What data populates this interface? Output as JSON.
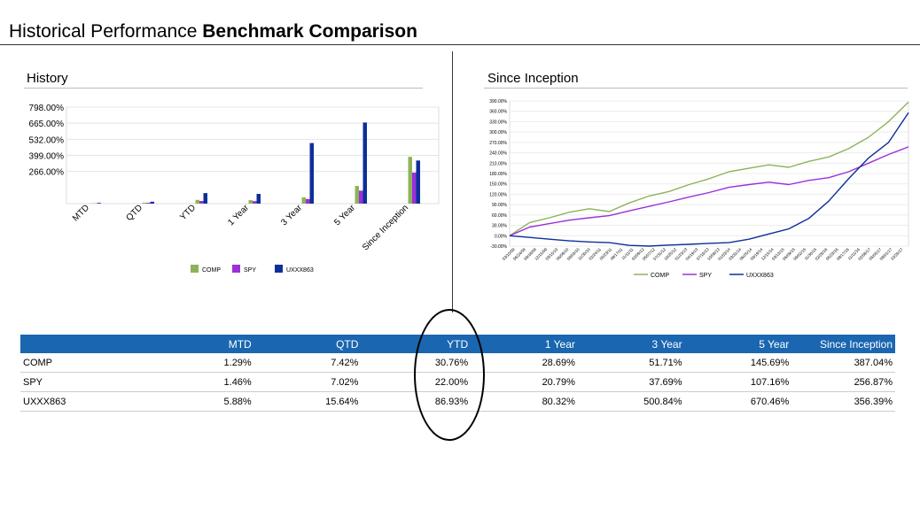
{
  "page": {
    "title_light": "Historical Performance ",
    "title_bold": "Benchmark Comparison"
  },
  "history": {
    "title": "History"
  },
  "inception": {
    "title": "Since Inception"
  },
  "colors": {
    "comp": "#8db35a",
    "spy": "#9b30d9",
    "uxxx": "#0d2f9a",
    "header_bg": "#1a66b0"
  },
  "chart_data": [
    {
      "type": "bar",
      "title": "History",
      "categories": [
        "MTD",
        "QTD",
        "YTD",
        "1 Year",
        "3 Year",
        "5 Year",
        "Since Inception"
      ],
      "series": [
        {
          "name": "COMP",
          "values": [
            1.29,
            7.42,
            30.76,
            28.69,
            51.71,
            145.69,
            387.04
          ]
        },
        {
          "name": "SPY",
          "values": [
            1.46,
            7.02,
            22.0,
            20.79,
            37.69,
            107.16,
            256.87
          ]
        },
        {
          "name": "UXXX863",
          "values": [
            5.88,
            15.64,
            86.93,
            80.32,
            500.84,
            670.46,
            356.39
          ]
        }
      ],
      "y_ticks": [
        "798.00%",
        "665.00%",
        "532.00%",
        "399.00%",
        "266.00%"
      ],
      "y_tick_values": [
        798,
        665,
        532,
        399,
        266
      ],
      "ylim": [
        0,
        798
      ],
      "legend": [
        "COMP",
        "SPY",
        "UXXX863"
      ],
      "legend_position": "bottom"
    },
    {
      "type": "line",
      "title": "Since Inception",
      "y_ticks": [
        "390.00%",
        "360.00%",
        "330.00%",
        "300.00%",
        "270.00%",
        "240.00%",
        "210.00%",
        "180.00%",
        "150.00%",
        "120.00%",
        "90.00%",
        "60.00%",
        "30.00%",
        "0.00%",
        "-30.00%"
      ],
      "ylim": [
        -30,
        390
      ],
      "x_ticks": [
        "03/10/09",
        "06/24/09",
        "09/18/09",
        "12/15/09",
        "03/15/10",
        "06/09/10",
        "09/03/10",
        "11/30/10",
        "02/24/11",
        "05/23/11",
        "08/17/11",
        "11/11/11",
        "02/09/12",
        "05/07/12",
        "07/31/12",
        "10/25/12",
        "01/23/13",
        "04/19/13",
        "07/16/13",
        "10/08/13",
        "01/03/14",
        "03/31/14",
        "06/25/14",
        "09/19/14",
        "12/15/14",
        "03/13/15",
        "06/09/15",
        "09/02/15",
        "11/30/15",
        "02/26/16",
        "05/23/16",
        "08/17/16",
        "11/11/16",
        "02/08/17",
        "05/05/17",
        "08/01/17",
        "10/26/17"
      ],
      "series": [
        {
          "name": "COMP",
          "x": [
            0,
            0.05,
            0.1,
            0.15,
            0.2,
            0.25,
            0.3,
            0.35,
            0.4,
            0.45,
            0.5,
            0.55,
            0.6,
            0.65,
            0.7,
            0.75,
            0.8,
            0.85,
            0.9,
            0.95,
            1.0
          ],
          "values": [
            0,
            38,
            52,
            68,
            78,
            70,
            95,
            115,
            128,
            148,
            165,
            185,
            195,
            205,
            198,
            215,
            228,
            252,
            285,
            330,
            387
          ]
        },
        {
          "name": "SPY",
          "x": [
            0,
            0.05,
            0.1,
            0.15,
            0.2,
            0.25,
            0.3,
            0.35,
            0.4,
            0.45,
            0.5,
            0.55,
            0.6,
            0.65,
            0.7,
            0.75,
            0.8,
            0.85,
            0.9,
            0.95,
            1.0
          ],
          "values": [
            0,
            25,
            35,
            45,
            52,
            58,
            72,
            85,
            98,
            112,
            125,
            140,
            148,
            155,
            148,
            160,
            168,
            185,
            210,
            235,
            257
          ]
        },
        {
          "name": "UXXX863",
          "x": [
            0,
            0.05,
            0.1,
            0.15,
            0.2,
            0.25,
            0.3,
            0.35,
            0.4,
            0.45,
            0.5,
            0.55,
            0.6,
            0.65,
            0.7,
            0.75,
            0.8,
            0.85,
            0.9,
            0.95,
            1.0
          ],
          "values": [
            0,
            -5,
            -10,
            -15,
            -18,
            -20,
            -28,
            -30,
            -27,
            -25,
            -22,
            -20,
            -10,
            5,
            20,
            50,
            100,
            165,
            225,
            270,
            356
          ]
        }
      ],
      "legend": [
        "COMP",
        "SPY",
        "UXXX863"
      ],
      "legend_position": "bottom"
    }
  ],
  "table": {
    "columns": [
      "",
      "MTD",
      "QTD",
      "YTD",
      "1 Year",
      "3 Year",
      "5 Year",
      "Since Inception"
    ],
    "rows": [
      {
        "name": "COMP",
        "cells": [
          "1.29%",
          "7.42%",
          "30.76%",
          "28.69%",
          "51.71%",
          "145.69%",
          "387.04%"
        ]
      },
      {
        "name": "SPY",
        "cells": [
          "1.46%",
          "7.02%",
          "22.00%",
          "20.79%",
          "37.69%",
          "107.16%",
          "256.87%"
        ]
      },
      {
        "name": "UXXX863",
        "cells": [
          "5.88%",
          "15.64%",
          "86.93%",
          "80.32%",
          "500.84%",
          "670.46%",
          "356.39%"
        ]
      }
    ]
  }
}
